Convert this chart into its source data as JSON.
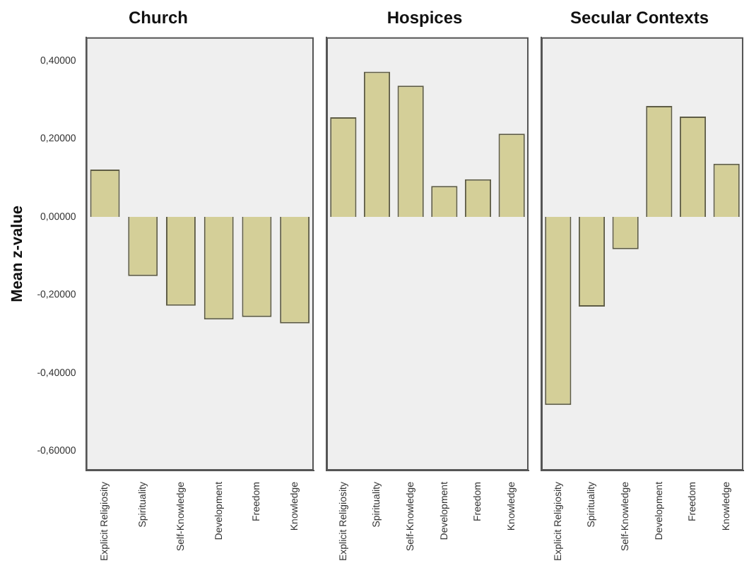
{
  "chart_data": [
    {
      "type": "bar",
      "title": "Church",
      "ylabel": "Mean z-value",
      "categories": [
        "Explicit Religiosity",
        "Spirituality",
        "Self-Knowledge",
        "Development",
        "Freedom",
        "Knowledge"
      ],
      "values": [
        0.121,
        -0.152,
        -0.228,
        -0.263,
        -0.257,
        -0.273
      ],
      "color": "#d4cf98",
      "ylim": [
        -0.65,
        0.46
      ],
      "yticks": [
        {
          "value": -0.6,
          "label": "-0,60000"
        },
        {
          "value": -0.4,
          "label": "-0,40000"
        },
        {
          "value": -0.2,
          "label": "-0,20000"
        },
        {
          "value": 0,
          "label": "0,00000"
        },
        {
          "value": 0.2,
          "label": "0,20000"
        },
        {
          "value": 0.4,
          "label": "0,40000"
        }
      ],
      "grid": false,
      "legend": false
    },
    {
      "type": "bar",
      "title": "Hospices",
      "categories": [
        "Explicit Religiosity",
        "Spirituality",
        "Self-Knowledge",
        "Development",
        "Freedom",
        "Knowledge"
      ],
      "values": [
        0.255,
        0.372,
        0.336,
        0.079,
        0.096,
        0.213
      ],
      "color": "#d4cf98",
      "ylim": [
        -0.65,
        0.46
      ],
      "tick_labels": "x",
      "grid": false,
      "legend": false
    },
    {
      "type": "bar",
      "title": "Secular Contexts",
      "categories": [
        "Explicit Religiosity",
        "Spirituality",
        "Self-Knowledge",
        "Development",
        "Freedom",
        "Knowledge"
      ],
      "values": [
        -0.482,
        -0.23,
        -0.083,
        0.284,
        0.257,
        0.136
      ],
      "color": "#d4cf98",
      "ylim": [
        -0.65,
        0.46
      ],
      "tick_labels": "x",
      "grid": false,
      "legend": false
    }
  ]
}
